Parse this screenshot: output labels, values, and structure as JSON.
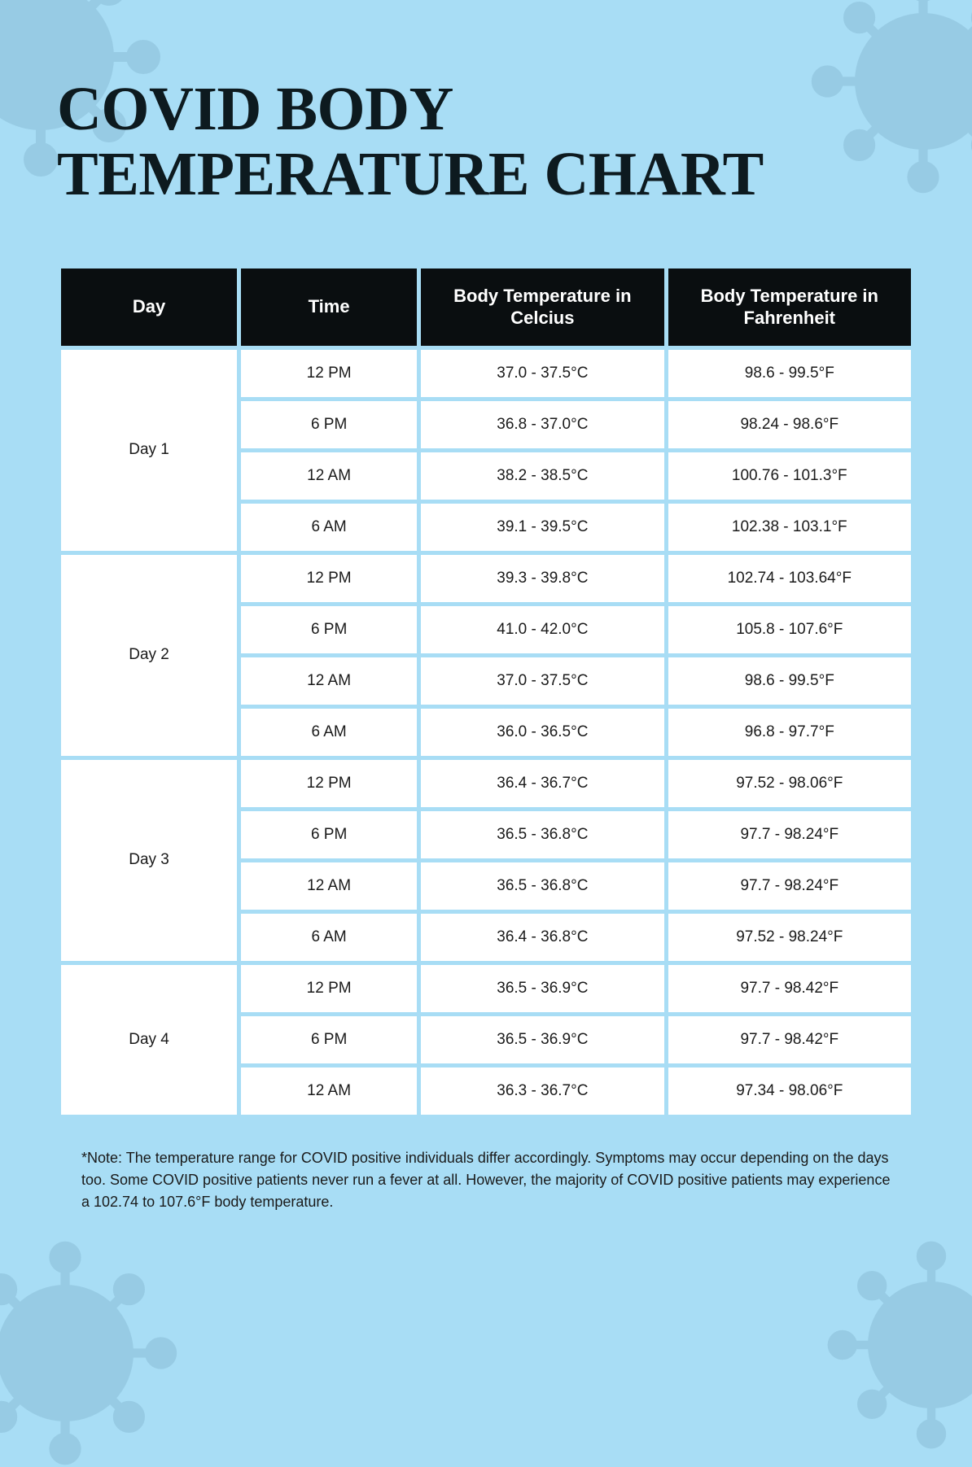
{
  "title": "COVID BODY TEMPERATURE CHART",
  "columns": [
    "Day",
    "Time",
    "Body Temperature in Celcius",
    "Body Temperature in Fahrenheit"
  ],
  "days": [
    {
      "label": "Day 1",
      "readings": [
        {
          "time": "12 PM",
          "celsius": "37.0 - 37.5°C",
          "fahrenheit": "98.6 - 99.5°F"
        },
        {
          "time": "6 PM",
          "celsius": "36.8 - 37.0°C",
          "fahrenheit": "98.24 - 98.6°F"
        },
        {
          "time": "12 AM",
          "celsius": "38.2 - 38.5°C",
          "fahrenheit": "100.76 - 101.3°F"
        },
        {
          "time": "6 AM",
          "celsius": "39.1 - 39.5°C",
          "fahrenheit": "102.38 - 103.1°F"
        }
      ]
    },
    {
      "label": "Day 2",
      "readings": [
        {
          "time": "12 PM",
          "celsius": "39.3 - 39.8°C",
          "fahrenheit": "102.74 - 103.64°F"
        },
        {
          "time": "6 PM",
          "celsius": "41.0 - 42.0°C",
          "fahrenheit": "105.8 - 107.6°F"
        },
        {
          "time": "12 AM",
          "celsius": "37.0 - 37.5°C",
          "fahrenheit": "98.6 - 99.5°F"
        },
        {
          "time": "6 AM",
          "celsius": "36.0 - 36.5°C",
          "fahrenheit": "96.8 - 97.7°F"
        }
      ]
    },
    {
      "label": "Day 3",
      "readings": [
        {
          "time": "12 PM",
          "celsius": "36.4 - 36.7°C",
          "fahrenheit": "97.52 - 98.06°F"
        },
        {
          "time": "6 PM",
          "celsius": "36.5 - 36.8°C",
          "fahrenheit": "97.7 - 98.24°F"
        },
        {
          "time": "12 AM",
          "celsius": "36.5 - 36.8°C",
          "fahrenheit": "97.7 - 98.24°F"
        },
        {
          "time": "6 AM",
          "celsius": "36.4 - 36.8°C",
          "fahrenheit": "97.52 - 98.24°F"
        }
      ]
    },
    {
      "label": "Day 4",
      "readings": [
        {
          "time": "12 PM",
          "celsius": "36.5 - 36.9°C",
          "fahrenheit": "97.7 - 98.42°F"
        },
        {
          "time": "6 PM",
          "celsius": "36.5 - 36.9°C",
          "fahrenheit": "97.7 - 98.42°F"
        },
        {
          "time": "12 AM",
          "celsius": "36.3 - 36.7°C",
          "fahrenheit": "97.34 - 98.06°F"
        }
      ]
    }
  ],
  "note": "*Note: The temperature range for COVID positive individuals differ accordingly. Symptoms may occur depending on the days too. Some COVID positive patients never run a fever at all. However, the majority of COVID positive patients may experience a 102.74 to 107.6°F body temperature.",
  "colors": {
    "page_bg": "#a8ddf5",
    "header_bg": "#0a0e10",
    "header_text": "#ffffff",
    "cell_bg": "#ffffff",
    "cell_text": "#1a1a1a",
    "title_text": "#0d1a1f",
    "virus_opacity": 0.15
  },
  "table_style": {
    "type": "table",
    "border_spacing": 5,
    "col_widths_pct": [
      21,
      21,
      29,
      29
    ],
    "header_fontsize": 22,
    "cell_fontsize": 19,
    "title_fontsize": 76,
    "note_fontsize": 18
  }
}
